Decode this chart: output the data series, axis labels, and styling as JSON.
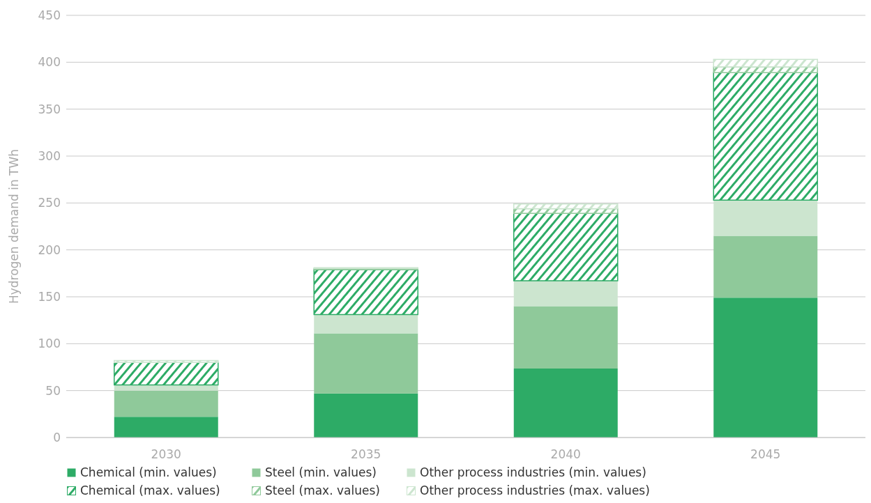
{
  "chart_data": {
    "type": "bar",
    "stacked": true,
    "ylabel": "Hydrogen demand in TWh",
    "categories": [
      "2030",
      "2035",
      "2040",
      "2045"
    ],
    "series": [
      {
        "name": "Chemical (min. values)",
        "color": "#2dab66",
        "values": [
          22,
          47,
          73.5,
          149
        ]
      },
      {
        "name": "Steel (min. values)",
        "color": "#8fc99a",
        "values": [
          28,
          64,
          66.5,
          66
        ]
      },
      {
        "name": "Other process industries (min. values)",
        "color": "#cce5cf",
        "values": [
          6,
          20,
          27,
          38
        ]
      },
      {
        "name": "Chemical (max. values)",
        "color": "#2dab66",
        "values": [
          24,
          48,
          72,
          136
        ]
      },
      {
        "name": "Steel (max. values)",
        "color": "#8fc99a",
        "values": [
          null,
          1,
          5,
          6
        ]
      },
      {
        "name": "Other process industries (max. values)",
        "color": "#cce5cf",
        "values": [
          2,
          1,
          5,
          8
        ]
      }
    ],
    "ylim": [
      0,
      450
    ],
    "yticks": [
      0,
      50,
      100,
      150,
      200,
      250,
      300,
      350,
      400,
      450
    ],
    "grid": "y",
    "legend": "bottom"
  }
}
